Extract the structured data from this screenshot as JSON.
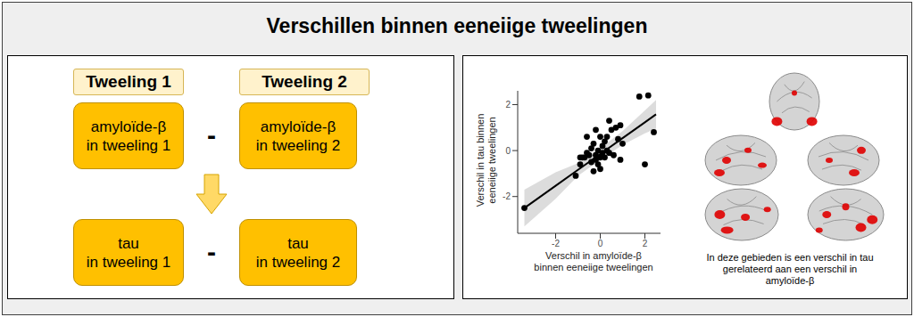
{
  "title": "Verschillen binnen eeneiige tweelingen",
  "diagram": {
    "headers": [
      "Tweeling 1",
      "Tweeling 2"
    ],
    "rows": [
      {
        "left": [
          "amyloïde-β",
          "in tweeling 1"
        ],
        "operator": "-",
        "right": [
          "amyloïde-β",
          "in tweeling 2"
        ]
      },
      {
        "left": [
          "tau",
          "in tweeling 1"
        ],
        "operator": "-",
        "right": [
          "tau",
          "in tweeling 2"
        ]
      }
    ]
  },
  "chart_data": {
    "type": "scatter",
    "x_label": [
      "Verschil in amyloïde-β",
      "binnen eeneiige tweelingen"
    ],
    "y_label": [
      "Verschil in tau binnen",
      "eeneiige tweelingen"
    ],
    "x": [
      -3.4,
      2.4,
      1.75,
      2.15,
      2.0,
      -1.1,
      -0.9,
      -0.8,
      -0.7,
      -0.6,
      -0.5,
      -0.4,
      -0.3,
      -0.3,
      -0.2,
      -0.2,
      -0.1,
      -0.1,
      0.0,
      0.0,
      0.1,
      0.1,
      0.2,
      0.2,
      0.3,
      0.3,
      0.4,
      0.5,
      0.6,
      0.7,
      0.8,
      0.9,
      0.9,
      -0.6,
      -0.4,
      0.0,
      0.4,
      -0.2,
      1.0,
      -0.9
    ],
    "y": [
      -2.5,
      0.8,
      2.35,
      2.4,
      -0.6,
      -1.1,
      -0.6,
      -0.3,
      -0.3,
      0.6,
      -0.2,
      -0.5,
      -0.9,
      0.3,
      -0.4,
      -0.2,
      0.0,
      -0.6,
      0.6,
      -0.3,
      -0.1,
      0.2,
      -0.3,
      0.4,
      0.0,
      0.6,
      -0.1,
      0.9,
      -0.2,
      1.0,
      0.5,
      -0.4,
      1.1,
      -0.1,
      0.1,
      -0.8,
      1.3,
      0.9,
      0.3,
      -0.3
    ],
    "color": "#000000",
    "xlim": [
      -3.7,
      2.7
    ],
    "ylim": [
      -3.6,
      2.6
    ],
    "xticks": [
      -2,
      0,
      2
    ],
    "yticks": [
      -2,
      0,
      2
    ],
    "grid": false,
    "regression_line": {
      "x": [
        -3.4,
        -2,
        -1,
        0,
        1,
        2,
        2.5
      ],
      "y": [
        -2.5,
        -1.53,
        -0.84,
        -0.15,
        0.54,
        1.23,
        1.58
      ],
      "lower": [
        -3.3,
        -2.1,
        -1.1,
        -0.4,
        0.25,
        0.75,
        0.95
      ],
      "upper": [
        -1.7,
        -0.95,
        -0.55,
        0.1,
        0.85,
        1.75,
        2.2
      ]
    }
  },
  "brain_caption": [
    "In deze gebieden is een verschil in tau",
    "gerelateerd aan een verschil in",
    "amyloïde-β"
  ]
}
